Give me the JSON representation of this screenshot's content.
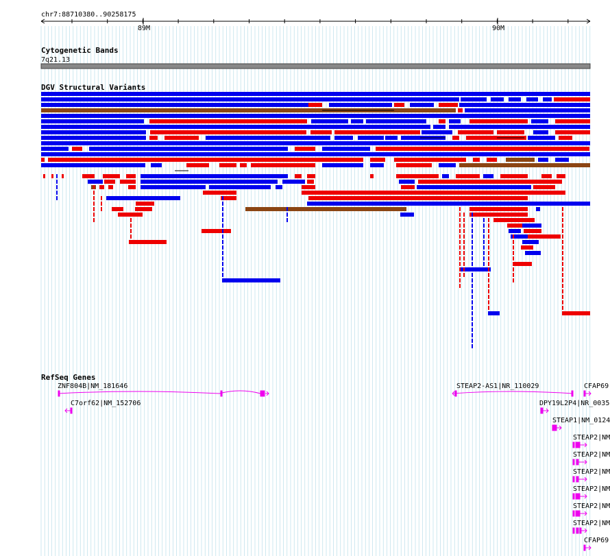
{
  "ruler": {
    "location": "chr7:88710380..90258175",
    "ticks": [
      "89M",
      "90M"
    ],
    "range_bp": [
      88710380,
      90258175
    ]
  },
  "tracks": {
    "cytoband": {
      "title": "Cytogenetic Bands",
      "band": "7q21.13"
    },
    "dgv": {
      "title": "DGV Structural Variants"
    },
    "refseq": {
      "title": "RefSeq Genes"
    }
  },
  "genes": [
    {
      "label": "ZNF804B|NM_181646",
      "strand": "+"
    },
    {
      "label": "C7orf62|NM_152706",
      "strand": "-"
    },
    {
      "label": "STEAP2-AS1|NR_110029",
      "strand": "-"
    },
    {
      "label": "CFAP69",
      "strand": "+"
    },
    {
      "label": "DPY19L2P4|NR_0035",
      "strand": "+"
    },
    {
      "label": "STEAP1|NM_0124",
      "strand": "+"
    },
    {
      "label": "STEAP2|NM",
      "strand": "+"
    },
    {
      "label": "STEAP2|NM",
      "strand": "+"
    },
    {
      "label": "STEAP2|NM",
      "strand": "+"
    },
    {
      "label": "STEAP2|NM",
      "strand": "+"
    },
    {
      "label": "STEAP2|NM",
      "strand": "+"
    },
    {
      "label": "STEAP2|NM",
      "strand": "+"
    },
    {
      "label": "CFAP69",
      "strand": "+"
    }
  ],
  "colors": {
    "gain": "#0000ee",
    "loss": "#ee0000",
    "gain_loss": "#8b4513",
    "gene": "#ee00ee",
    "grid": "#add8e6"
  }
}
